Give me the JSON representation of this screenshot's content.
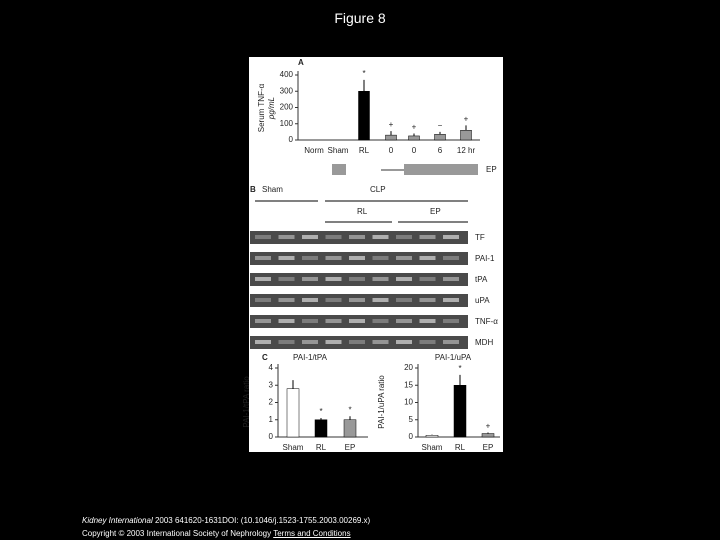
{
  "slide": {
    "title": "Figure 8",
    "citation": {
      "journal": "Kidney International",
      "text": " 2003 641620-1631DOI: (10.1046/j.1523-1755.2003.00269.x)",
      "copyright": "Copyright © 2003 International Society of Nephrology ",
      "link": "Terms and Conditions"
    }
  },
  "figure": {
    "panel_a": {
      "label": "A",
      "y_label": "Serum TNF-α",
      "y_unit": "pg/mL",
      "ylim": [
        0,
        400
      ],
      "yticks": [
        0,
        100,
        200,
        300,
        400
      ],
      "categories": [
        "Norm",
        "Sham",
        "RL",
        "0",
        "0",
        "6",
        "12 hr"
      ],
      "values": [
        0,
        0,
        300,
        30,
        25,
        35,
        60
      ],
      "errors": [
        0,
        0,
        70,
        25,
        15,
        15,
        30
      ],
      "colors": [
        "#000000",
        "#000000",
        "#000000",
        "#999999",
        "#999999",
        "#999999",
        "#999999"
      ],
      "markers": [
        null,
        null,
        "*",
        "+",
        "+",
        "−",
        "+"
      ],
      "ep_label": "EP"
    },
    "panel_b": {
      "label": "B",
      "sham": "Sham",
      "clp": "CLP",
      "rl": "RL",
      "ep": "EP",
      "genes": [
        "TF",
        "PAI-1",
        "tPA",
        "uPA",
        "TNF-α",
        "MDH"
      ]
    },
    "panel_c": {
      "label": "C",
      "charts": [
        {
          "title": "PAI-1/tPA",
          "y_label": "PAI-1/tPA ratio",
          "ylim": [
            0,
            4
          ],
          "yticks": [
            0,
            1,
            2,
            3,
            4
          ],
          "categories": [
            "Sham",
            "RL",
            "EP"
          ],
          "values": [
            2.8,
            1,
            1
          ],
          "errors": [
            0.5,
            0.1,
            0.2
          ],
          "markers": [
            null,
            "*",
            "*"
          ]
        },
        {
          "title": "PAI-1/uPA",
          "y_label": "PAI-1/uPA ratio",
          "ylim": [
            0,
            20
          ],
          "yticks": [
            0,
            5,
            10,
            15,
            20
          ],
          "categories": [
            "Sham",
            "RL",
            "EP"
          ],
          "values": [
            0.5,
            15,
            1
          ],
          "errors": [
            0.2,
            3,
            0.3
          ],
          "markers": [
            null,
            "*",
            "+"
          ]
        }
      ]
    }
  }
}
